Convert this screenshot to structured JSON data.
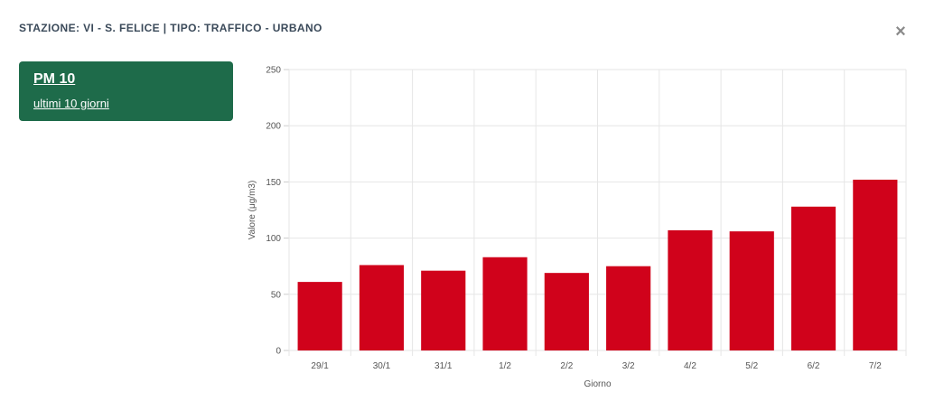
{
  "header": {
    "station_title": "STAZIONE: VI - S. FELICE | TIPO: TRAFFICO - URBANO",
    "close_symbol": "×",
    "close_icon": "close-icon"
  },
  "selector": {
    "pollutant": "PM 10",
    "period": "ultimi 10 giorni"
  },
  "colors": {
    "card": "#1e6b4a",
    "bar": "#d0021b",
    "grid": "#e6e6e6"
  },
  "chart_data": {
    "type": "bar",
    "categories": [
      "29/1",
      "30/1",
      "31/1",
      "1/2",
      "2/2",
      "3/2",
      "4/2",
      "5/2",
      "6/2",
      "7/2"
    ],
    "values": [
      61,
      76,
      71,
      83,
      69,
      75,
      107,
      106,
      128,
      152
    ],
    "xlabel": "Giorno",
    "ylabel": "Valore (μg/m3)",
    "ylim": [
      0,
      250
    ],
    "yticks": [
      0,
      50,
      100,
      150,
      200,
      250
    ],
    "grid": true,
    "legend": "none"
  }
}
